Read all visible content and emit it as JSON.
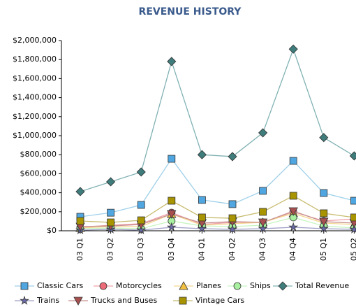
{
  "chart_data": {
    "type": "line",
    "title": "REVENUE HISTORY",
    "categories": [
      "03 Q1",
      "03 Q2",
      "03 Q3",
      "03 Q4",
      "04 Q1",
      "04 Q2",
      "04 Q3",
      "04 Q4",
      "05 Q1",
      "05 Q2"
    ],
    "ylim": [
      0,
      2000000
    ],
    "yticks": [
      {
        "value": 0,
        "label": "$0"
      },
      {
        "value": 200000,
        "label": "$200,000"
      },
      {
        "value": 400000,
        "label": "$400,000"
      },
      {
        "value": 600000,
        "label": "$600,000"
      },
      {
        "value": 800000,
        "label": "$800,000"
      },
      {
        "value": 1000000,
        "label": "$1,000,000"
      },
      {
        "value": 1200000,
        "label": "$1,200,000"
      },
      {
        "value": 1400000,
        "label": "$1,400,000"
      },
      {
        "value": 1600000,
        "label": "$1,600,000"
      },
      {
        "value": 1800000,
        "label": "$1,800,000"
      },
      {
        "value": 2000000,
        "label": "$2,000,000"
      }
    ],
    "grid": false,
    "legend": "bottom",
    "series": [
      {
        "name": "Classic Cars",
        "color": "#4fa6e0",
        "line_color": "#9fd0ea",
        "marker": "square",
        "values": [
          147000,
          190000,
          272000,
          757000,
          324000,
          280000,
          420000,
          735000,
          397000,
          316000
        ]
      },
      {
        "name": "Motorcycles",
        "color": "#ec6b78",
        "line_color": "#f0a0a8",
        "marker": "circle",
        "values": [
          37000,
          59000,
          74000,
          191000,
          66000,
          88000,
          88000,
          199000,
          103000,
          125000
        ]
      },
      {
        "name": "Planes",
        "color": "#f2c040",
        "line_color": "#f5d890",
        "marker": "triangle",
        "values": [
          29000,
          44000,
          44000,
          176000,
          59000,
          74000,
          88000,
          184000,
          81000,
          66000
        ]
      },
      {
        "name": "Ships",
        "color": "#a8f0a0",
        "line_color": "#c8f5c0",
        "marker": "circle",
        "values": [
          22000,
          29000,
          22000,
          103000,
          51000,
          44000,
          59000,
          140000,
          51000,
          29000
        ]
      },
      {
        "name": "Total Revenue",
        "color": "#3f7c7c",
        "line_color": "#82b2b4",
        "marker": "diamond",
        "values": [
          412000,
          515000,
          618000,
          1780000,
          800000,
          780000,
          1030000,
          1910000,
          980000,
          787000
        ]
      },
      {
        "name": "Trains",
        "color": "#6a6aa8",
        "line_color": "#a0a0c8",
        "marker": "star",
        "values": [
          7000,
          15000,
          7000,
          37000,
          22000,
          15000,
          22000,
          37000,
          22000,
          15000
        ]
      },
      {
        "name": "Trucks and Buses",
        "color": "#a85050",
        "line_color": "#c89090",
        "marker": "triangle-down",
        "values": [
          44000,
          51000,
          66000,
          176000,
          81000,
          96000,
          88000,
          206000,
          96000,
          81000
        ]
      },
      {
        "name": "Vintage Cars",
        "color": "#a89400",
        "line_color": "#c8bc70",
        "marker": "square",
        "values": [
          103000,
          88000,
          110000,
          316000,
          140000,
          132000,
          199000,
          368000,
          184000,
          140000
        ]
      }
    ]
  }
}
